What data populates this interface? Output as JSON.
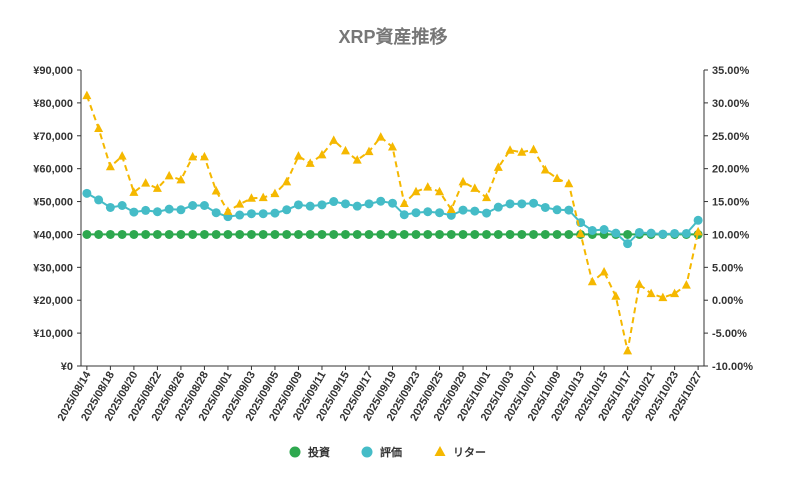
{
  "chart_data": {
    "type": "line",
    "title": "XRP資産推移",
    "x_tick_labels": [
      "2025/08/14",
      "2025/08/18",
      "2025/08/20",
      "2025/08/22",
      "2025/08/26",
      "2025/08/28",
      "2025/09/01",
      "2025/09/03",
      "2025/09/05",
      "2025/09/09",
      "2025/09/11",
      "2025/09/15",
      "2025/09/17",
      "2025/09/19",
      "2025/09/23",
      "2025/09/25",
      "2025/09/29",
      "2025/10/01",
      "2025/10/03",
      "2025/10/07",
      "2025/10/09",
      "2025/10/13",
      "2025/10/15",
      "2025/10/17",
      "2025/10/21",
      "2025/10/23",
      "2025/10/27"
    ],
    "y_left": {
      "min": 0,
      "max": 90000,
      "ticks": [
        "¥0",
        "¥10,000",
        "¥20,000",
        "¥30,000",
        "¥40,000",
        "¥50,000",
        "¥60,000",
        "¥70,000",
        "¥80,000",
        "¥90,000"
      ]
    },
    "y_right": {
      "min": -10,
      "max": 35,
      "ticks": [
        "-10.00%",
        "-5.00%",
        "0.00%",
        "5.00%",
        "10.00%",
        "15.00%",
        "20.00%",
        "25.00%",
        "30.00%",
        "35.00%"
      ]
    },
    "grid": false,
    "legend_position": "bottom",
    "series": [
      {
        "name": "投資",
        "axis": "left",
        "color": "#2ea84f",
        "style": "solid-markers",
        "values": [
          40000,
          40000,
          40000,
          40000,
          40000,
          40000,
          40000,
          40000,
          40000,
          40000,
          40000,
          40000,
          40000,
          40000,
          40000,
          40000,
          40000,
          40000,
          40000,
          40000,
          40000,
          40000,
          40000,
          40000,
          40000,
          40000,
          40000,
          40000,
          40000,
          40000,
          40000,
          40000,
          40000,
          40000,
          40000,
          40000,
          40000,
          40000,
          40000,
          40000,
          40000,
          40000,
          40000,
          40000,
          40000,
          40000,
          40000,
          40000,
          40000,
          40000,
          40000,
          40000,
          40000
        ]
      },
      {
        "name": "評価",
        "axis": "left",
        "color": "#45bcc7",
        "style": "solid-markers",
        "values": [
          52500,
          50500,
          48200,
          48800,
          46800,
          47300,
          46900,
          47700,
          47500,
          48800,
          48800,
          46600,
          45400,
          45900,
          46300,
          46300,
          46500,
          47500,
          49000,
          48600,
          49000,
          50000,
          49300,
          48600,
          49300,
          50100,
          49500,
          46000,
          46600,
          46900,
          46600,
          45800,
          47400,
          47100,
          46500,
          48300,
          49300,
          49300,
          49500,
          48200,
          47500,
          47400,
          43600,
          41200,
          41500,
          40400,
          37200,
          40600,
          40400,
          40100,
          40300,
          40300,
          44300
        ]
      },
      {
        "name": "リター",
        "axis": "right",
        "color": "#f5b800",
        "style": "dashed-triangles",
        "values": [
          31.1,
          26.1,
          20.3,
          21.9,
          16.4,
          17.8,
          17.0,
          18.9,
          18.3,
          21.8,
          21.8,
          16.6,
          13.5,
          14.6,
          15.5,
          15.6,
          16.2,
          18.0,
          21.9,
          20.8,
          22.1,
          24.3,
          22.7,
          21.3,
          22.6,
          24.8,
          23.3,
          14.7,
          16.5,
          17.2,
          16.5,
          13.8,
          18.0,
          17.0,
          15.6,
          20.2,
          22.8,
          22.5,
          22.9,
          19.8,
          18.5,
          17.7,
          10.1,
          2.8,
          4.3,
          0.6,
          -7.7,
          2.4,
          1.0,
          0.4,
          1.0,
          2.3,
          10.4
        ]
      }
    ]
  }
}
